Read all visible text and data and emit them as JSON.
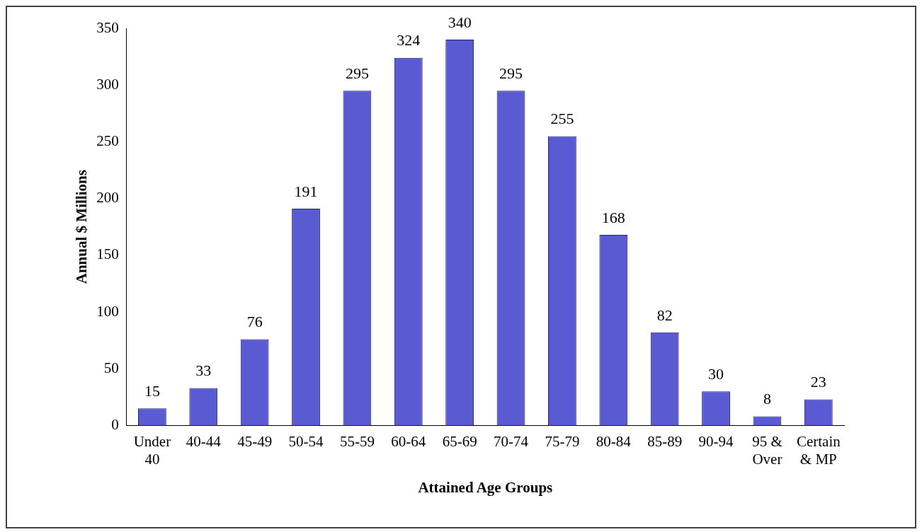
{
  "chart_data": {
    "type": "bar",
    "xlabel": "Attained Age Groups",
    "ylabel": "Annual $ Millions",
    "categories": [
      "Under 40",
      "40-44",
      "45-49",
      "50-54",
      "55-59",
      "60-64",
      "65-69",
      "70-74",
      "75-79",
      "80-84",
      "85-89",
      "90-94",
      "95 & Over",
      "Certain & MP"
    ],
    "values": [
      15,
      33,
      76,
      191,
      295,
      324,
      340,
      295,
      255,
      168,
      82,
      30,
      8,
      23
    ],
    "color": "#5a5ad2",
    "ylim": [
      0,
      350
    ],
    "yticks": [
      0,
      50,
      100,
      150,
      200,
      250,
      300,
      350
    ],
    "grid": false,
    "legend": false,
    "data_labels": true
  }
}
